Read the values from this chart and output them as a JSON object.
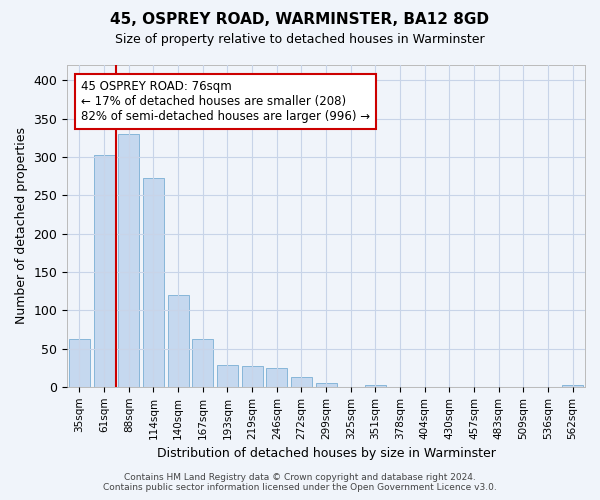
{
  "title1": "45, OSPREY ROAD, WARMINSTER, BA12 8GD",
  "title2": "Size of property relative to detached houses in Warminster",
  "xlabel": "Distribution of detached houses by size in Warminster",
  "ylabel": "Number of detached properties",
  "footer1": "Contains HM Land Registry data © Crown copyright and database right 2024.",
  "footer2": "Contains public sector information licensed under the Open Government Licence v3.0.",
  "bin_labels": [
    "35sqm",
    "61sqm",
    "88sqm",
    "114sqm",
    "140sqm",
    "167sqm",
    "193sqm",
    "219sqm",
    "246sqm",
    "272sqm",
    "299sqm",
    "325sqm",
    "351sqm",
    "378sqm",
    "404sqm",
    "430sqm",
    "457sqm",
    "483sqm",
    "509sqm",
    "536sqm",
    "562sqm"
  ],
  "bar_heights": [
    62,
    302,
    330,
    272,
    120,
    63,
    28,
    27,
    24,
    13,
    5,
    0,
    3,
    0,
    0,
    0,
    0,
    0,
    0,
    0,
    3
  ],
  "bar_color": "#c5d8ef",
  "bar_edge_color": "#7aafd4",
  "vline_x": 1.5,
  "vline_color": "#cc0000",
  "annotation_text": "45 OSPREY ROAD: 76sqm\n← 17% of detached houses are smaller (208)\n82% of semi-detached houses are larger (996) →",
  "annotation_box_color": "white",
  "annotation_box_edge_color": "#cc0000",
  "ylim": [
    0,
    420
  ],
  "yticks": [
    0,
    50,
    100,
    150,
    200,
    250,
    300,
    350,
    400
  ],
  "grid_color": "#c8d4e8",
  "background_color": "#f0f4fa",
  "axes_bg_color": "#f0f4fa"
}
